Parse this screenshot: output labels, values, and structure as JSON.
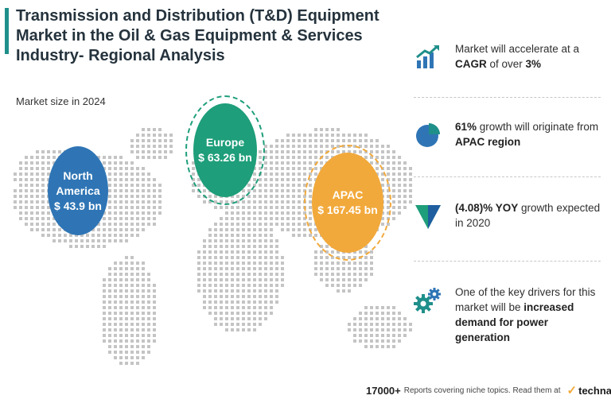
{
  "title": {
    "line1": "Transmission and Distribution (T&D) Equipment",
    "line2": "Market in the Oil & Gas Equipment & Services",
    "line3": "Industry- Regional Analysis"
  },
  "subtitle": "Market size in 2024",
  "regions": [
    {
      "name_line1": "North",
      "name_line2": "America",
      "value": "$ 43.9 bn",
      "color": "#2f75b5"
    },
    {
      "name_line1": "Europe",
      "value": "$ 63.26 bn",
      "color": "#1e9e7a"
    },
    {
      "name_line1": "APAC",
      "value": "$ 167.45 bn",
      "color": "#f2a93b"
    }
  ],
  "insights": [
    {
      "icon": "chart-growth-icon",
      "pre": "Market will accelerate at a ",
      "bold1": "CAGR",
      "mid": " of over ",
      "bold2": "3%",
      "post": ""
    },
    {
      "icon": "pie-chart-icon",
      "bold1": "61%",
      "mid": " growth will originate from ",
      "bold2": "APAC region"
    },
    {
      "icon": "down-triangle-icon",
      "bold1": "(4.08)% YOY",
      "mid": " growth expected in 2020"
    },
    {
      "icon": "gears-icon",
      "pre": "One of the key drivers for this market will be ",
      "bold1": "increased demand for power generation"
    }
  ],
  "footer": {
    "count": "17000+",
    "text": "Reports covering niche topics. Read them at",
    "brand": "technavio"
  },
  "colors": {
    "teal": "#1f8f8a",
    "blue": "#2f75b5",
    "green": "#1e9e7a",
    "orange": "#f2a93b",
    "map_dots": "#c4c4c4"
  }
}
